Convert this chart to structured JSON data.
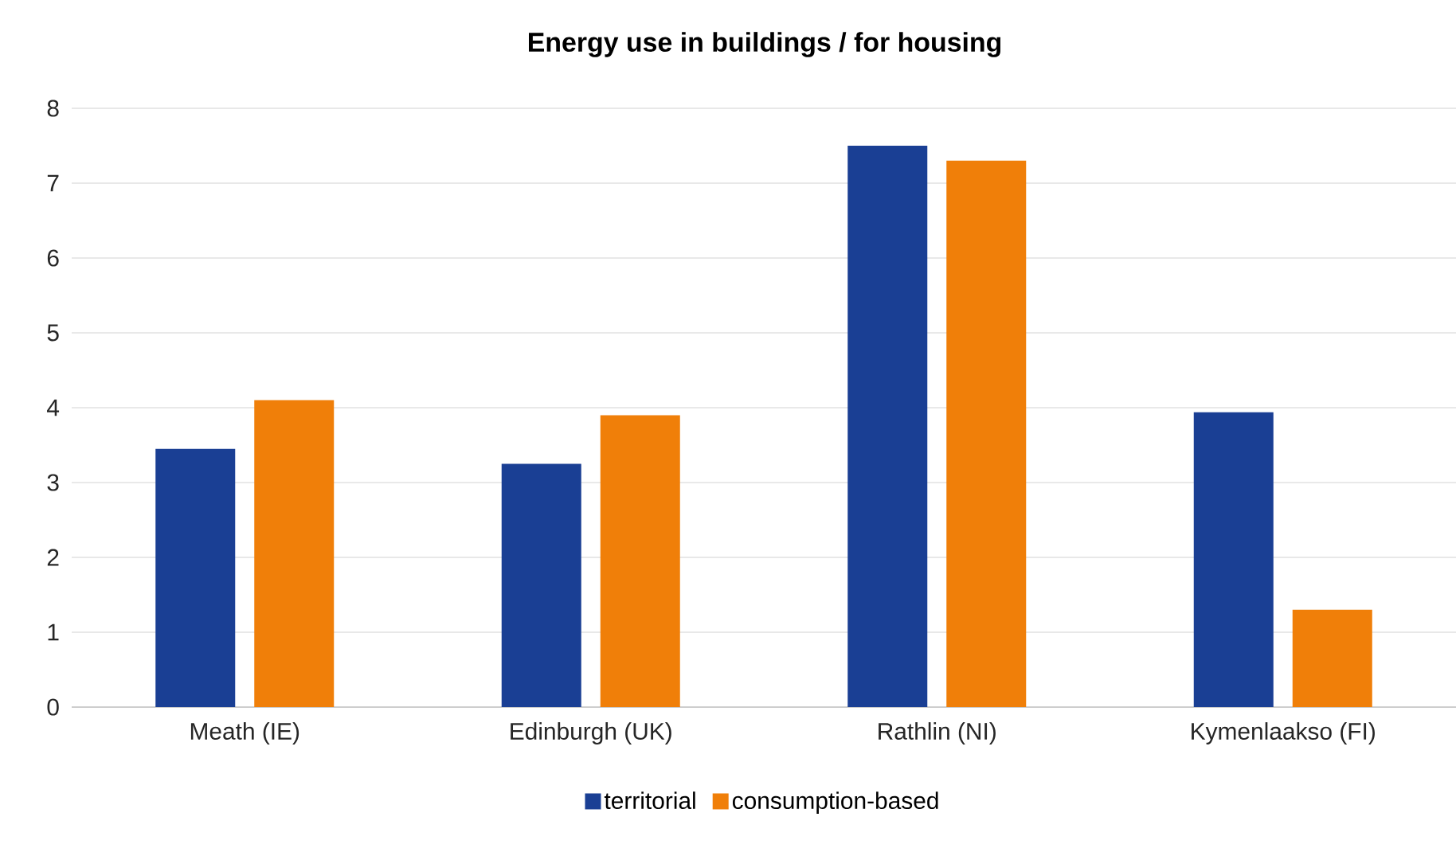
{
  "chart_data": {
    "type": "bar",
    "title": "Energy use in buildings / for housing",
    "categories": [
      "Meath (IE)",
      "Edinburgh (UK)",
      "Rathlin (NI)",
      "Kymenlaakso (FI)"
    ],
    "series": [
      {
        "name": "territorial",
        "color": "#1a3f94",
        "values": [
          3.45,
          3.25,
          7.5,
          3.94
        ]
      },
      {
        "name": "consumption-based",
        "color": "#f07f09",
        "values": [
          4.1,
          3.9,
          7.3,
          1.3
        ]
      }
    ],
    "ylim": [
      0,
      8
    ],
    "yticks": [
      0,
      1,
      2,
      3,
      4,
      5,
      6,
      7,
      8
    ],
    "grid": "y",
    "legend": "bottom"
  }
}
